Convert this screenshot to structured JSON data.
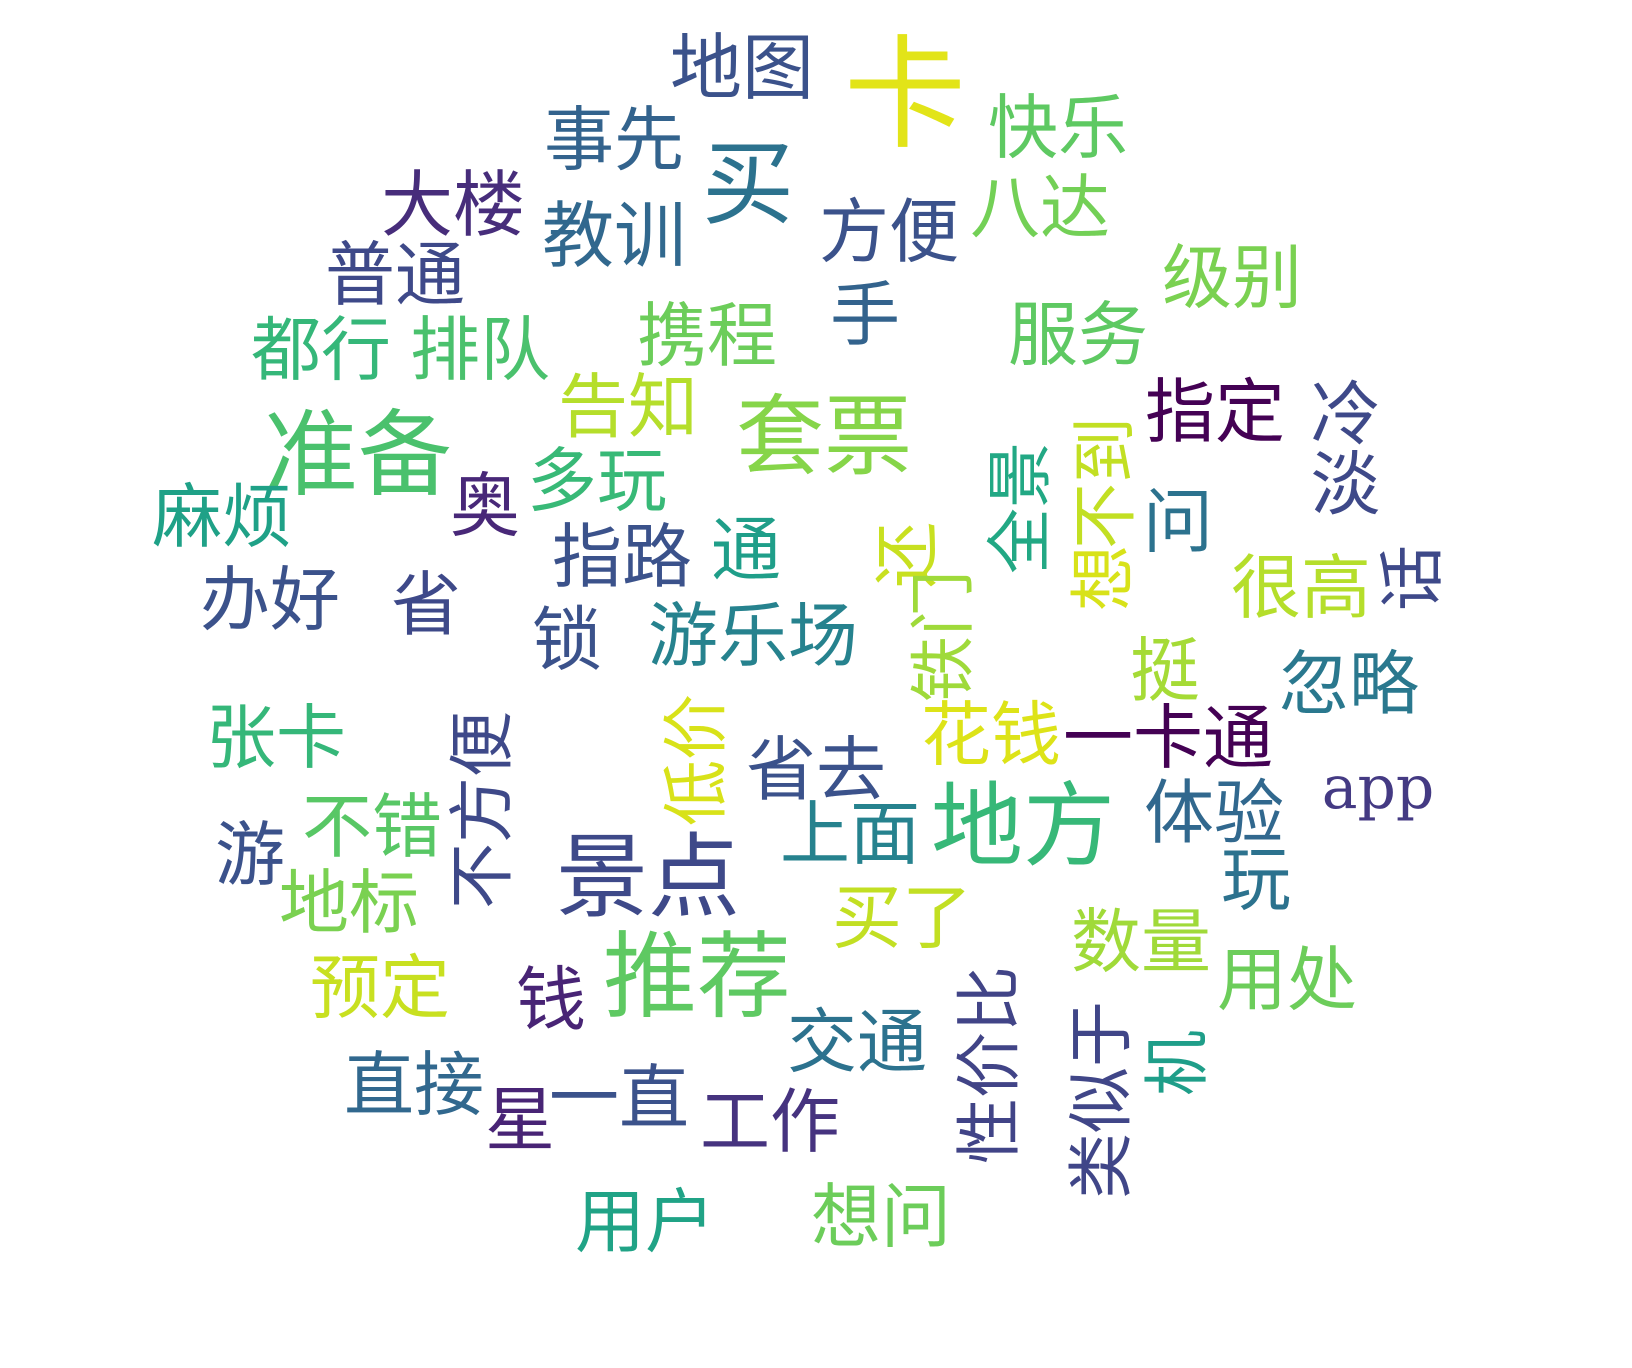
{
  "word_cloud": {
    "words": [
      {
        "text": "卡",
        "color": "#e2e418"
      },
      {
        "text": "地图",
        "color": "#3b528b"
      },
      {
        "text": "事先",
        "color": "#33638d"
      },
      {
        "text": "快乐",
        "color": "#5ec962"
      },
      {
        "text": "买",
        "color": "#2c728e"
      },
      {
        "text": "大楼",
        "color": "#472d7b"
      },
      {
        "text": "教训",
        "color": "#31688e"
      },
      {
        "text": "方便",
        "color": "#3b528b"
      },
      {
        "text": "八达",
        "color": "#73d056"
      },
      {
        "text": "普通",
        "color": "#3e4989"
      },
      {
        "text": "级别",
        "color": "#7ad151"
      },
      {
        "text": "都行",
        "color": "#35b779"
      },
      {
        "text": "排队",
        "color": "#4ac16d"
      },
      {
        "text": "携程",
        "color": "#6ccd5a"
      },
      {
        "text": "手",
        "color": "#33638d"
      },
      {
        "text": "服务",
        "color": "#5ec962"
      },
      {
        "text": "告知",
        "color": "#b5de2b"
      },
      {
        "text": "套票",
        "color": "#86d549"
      },
      {
        "text": "指定",
        "color": "#440154"
      },
      {
        "text": "冷淡",
        "color": "#3e4989"
      },
      {
        "text": "准备",
        "color": "#4ac16d"
      },
      {
        "text": "奥",
        "color": "#482878"
      },
      {
        "text": "多玩",
        "color": "#38b977"
      },
      {
        "text": "全景",
        "color": "#22a884"
      },
      {
        "text": "不到",
        "color": "#c2df23"
      },
      {
        "text": "问",
        "color": "#2c728e"
      },
      {
        "text": "麻烦",
        "color": "#1fa187"
      },
      {
        "text": "指路",
        "color": "#3b528b"
      },
      {
        "text": "通",
        "color": "#1f9e89"
      },
      {
        "text": "还",
        "color": "#c8e020"
      },
      {
        "text": "想",
        "color": "#d8e219"
      },
      {
        "text": "很高",
        "color": "#b5de2b"
      },
      {
        "text": "话",
        "color": "#3e4989"
      },
      {
        "text": "办好",
        "color": "#3b528b"
      },
      {
        "text": "省",
        "color": "#3e4989"
      },
      {
        "text": "锁",
        "color": "#3b528b"
      },
      {
        "text": "游乐场",
        "color": "#26828e"
      },
      {
        "text": "铁门",
        "color": "#9fda3a"
      },
      {
        "text": "挺",
        "color": "#a5db36"
      },
      {
        "text": "忽略",
        "color": "#2a788e"
      },
      {
        "text": "张卡",
        "color": "#35b779"
      },
      {
        "text": "不方便",
        "color": "#3e4989"
      },
      {
        "text": "低价",
        "color": "#d8e219"
      },
      {
        "text": "省去",
        "color": "#3b528b"
      },
      {
        "text": "花钱",
        "color": "#dde318"
      },
      {
        "text": "一卡通",
        "color": "#440154"
      },
      {
        "text": "app",
        "color": "#443a83"
      },
      {
        "text": "游",
        "color": "#3b528b"
      },
      {
        "text": "不错",
        "color": "#58c765"
      },
      {
        "text": "体验",
        "color": "#31688e"
      },
      {
        "text": "景点",
        "color": "#3e4989"
      },
      {
        "text": "上面",
        "color": "#26828e"
      },
      {
        "text": "地方",
        "color": "#37b878"
      },
      {
        "text": "地标",
        "color": "#7ad151"
      },
      {
        "text": "买了",
        "color": "#c2df23"
      },
      {
        "text": "玩",
        "color": "#2c728e"
      },
      {
        "text": "数量",
        "color": "#a0da39"
      },
      {
        "text": "预定",
        "color": "#c8e020"
      },
      {
        "text": "推荐",
        "color": "#5ec962"
      },
      {
        "text": "钱",
        "color": "#482475"
      },
      {
        "text": "用处",
        "color": "#6ccd5a"
      },
      {
        "text": "性价比",
        "color": "#414487"
      },
      {
        "text": "类似于",
        "color": "#404688"
      },
      {
        "text": "交通",
        "color": "#2c728e"
      },
      {
        "text": "机",
        "color": "#1f9e89"
      },
      {
        "text": "直接",
        "color": "#31688e"
      },
      {
        "text": "星",
        "color": "#482475"
      },
      {
        "text": "一直",
        "color": "#3b528b"
      },
      {
        "text": "工作",
        "color": "#46337f"
      },
      {
        "text": "用户",
        "color": "#20a386"
      },
      {
        "text": "想问",
        "color": "#6ccd5a"
      }
    ]
  }
}
